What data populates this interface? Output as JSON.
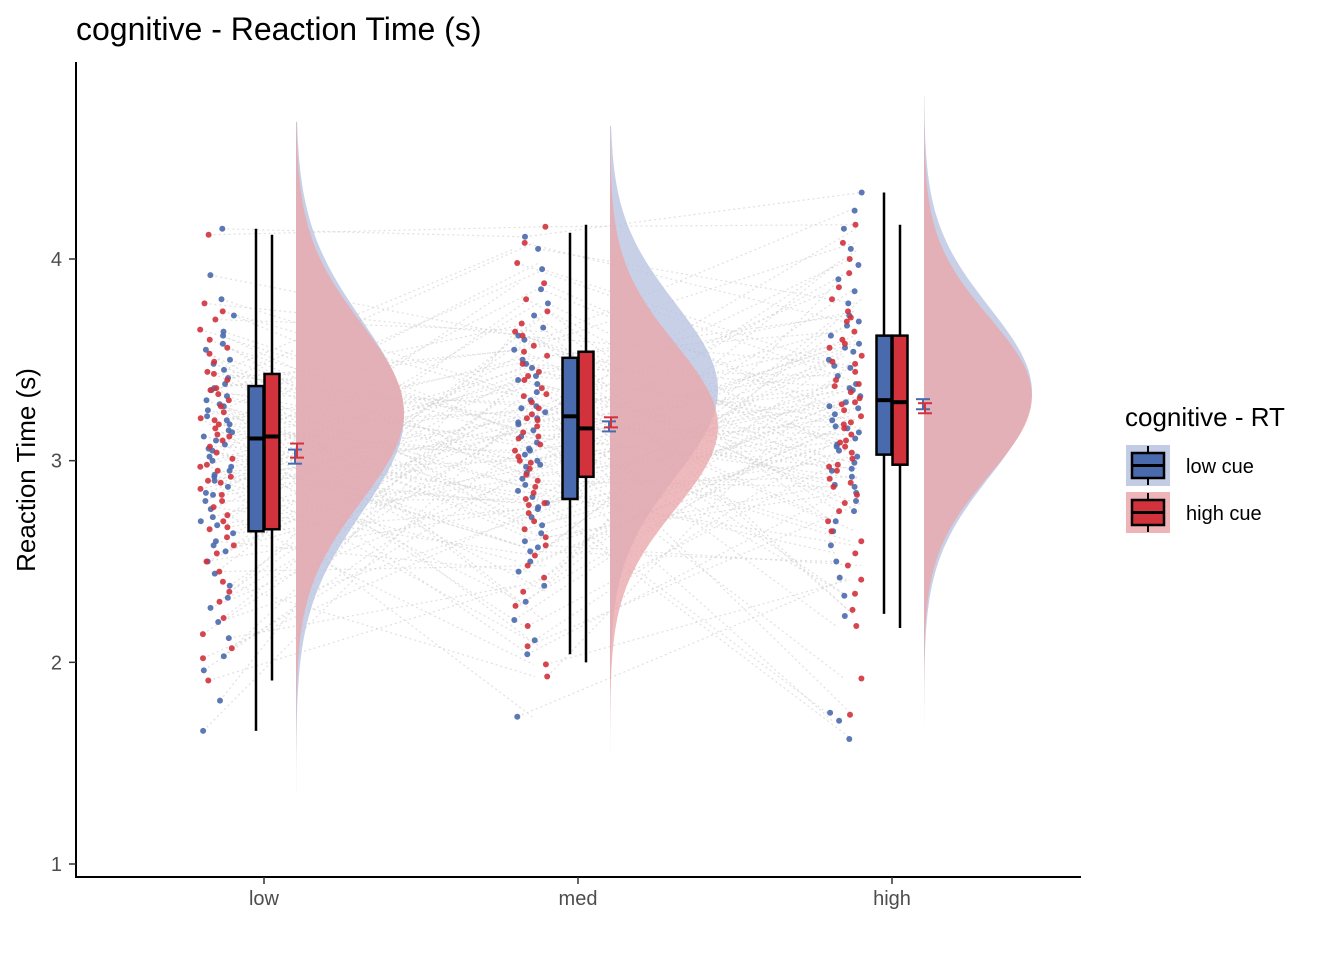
{
  "chart_data": {
    "type": "raincloud",
    "title": "cognitive  - Reaction Time (s)",
    "xlabel": "",
    "ylabel": "Reaction Time (s)",
    "ylim": [
      0.95,
      4.95
    ],
    "yticks": [
      1,
      2,
      3,
      4
    ],
    "categories": [
      "low",
      "med",
      "high"
    ],
    "legend": {
      "title": "cognitive  - RT",
      "position": "right",
      "entries": [
        "low cue",
        "high cue"
      ]
    },
    "colors": {
      "low cue": "#4a6aae",
      "high cue": "#d1323c",
      "low cue_fill": "#b7c3df",
      "high cue_fill": "#eba7ab",
      "overlap": "#c59aaa",
      "connect": "#d3d3d3"
    },
    "series": [
      {
        "name": "low cue",
        "box": [
          {
            "category": "low",
            "whisker_low": 1.66,
            "q1": 2.65,
            "median": 3.11,
            "q3": 3.37,
            "whisker_high": 4.15
          },
          {
            "category": "med",
            "whisker_low": 2.04,
            "q1": 2.81,
            "median": 3.22,
            "q3": 3.51,
            "whisker_high": 4.13
          },
          {
            "category": "high",
            "whisker_low": 2.24,
            "q1": 3.03,
            "median": 3.3,
            "q3": 3.62,
            "whisker_high": 4.33
          }
        ],
        "mean_se": [
          {
            "category": "low",
            "mean": 3.02,
            "se": 0.035
          },
          {
            "category": "med",
            "mean": 3.17,
            "se": 0.025
          },
          {
            "category": "high",
            "mean": 3.28,
            "se": 0.025
          }
        ],
        "density": [
          {
            "category": "low",
            "mean": 3.22,
            "sd": 0.48,
            "range": [
              1.13,
              4.68
            ]
          },
          {
            "category": "med",
            "mean": 3.35,
            "sd": 0.43,
            "range": [
              1.22,
              4.66
            ]
          },
          {
            "category": "high",
            "mean": 3.34,
            "sd": 0.42,
            "range": [
              1.17,
              4.81
            ]
          }
        ]
      },
      {
        "name": "high cue",
        "box": [
          {
            "category": "low",
            "whisker_low": 1.91,
            "q1": 2.66,
            "median": 3.12,
            "q3": 3.43,
            "whisker_high": 4.12
          },
          {
            "category": "med",
            "whisker_low": 2.0,
            "q1": 2.92,
            "median": 3.16,
            "q3": 3.54,
            "whisker_high": 4.17
          },
          {
            "category": "high",
            "whisker_low": 2.17,
            "q1": 2.98,
            "median": 3.29,
            "q3": 3.62,
            "whisker_high": 4.17
          }
        ],
        "mean_se": [
          {
            "category": "low",
            "mean": 3.05,
            "se": 0.035
          },
          {
            "category": "med",
            "mean": 3.19,
            "se": 0.025
          },
          {
            "category": "high",
            "mean": 3.26,
            "se": 0.025
          }
        ],
        "density": [
          {
            "category": "low",
            "mean": 3.24,
            "sd": 0.44,
            "range": [
              1.13,
              4.68
            ]
          },
          {
            "category": "med",
            "mean": 3.17,
            "sd": 0.41,
            "range": [
              1.22,
              4.66
            ]
          },
          {
            "category": "high",
            "mean": 3.32,
            "sd": 0.39,
            "range": [
              1.17,
              4.81
            ]
          }
        ]
      }
    ],
    "points": {
      "low": {
        "low cue": [
          4.15,
          3.92,
          3.8,
          3.72,
          3.62,
          3.58,
          3.55,
          3.5,
          3.45,
          3.41,
          3.38,
          3.35,
          3.32,
          3.3,
          3.28,
          3.25,
          3.22,
          3.2,
          3.18,
          3.15,
          3.12,
          3.1,
          3.08,
          3.05,
          3.02,
          3.0,
          2.97,
          2.95,
          2.92,
          2.9,
          2.87,
          2.84,
          2.8,
          2.76,
          2.72,
          2.68,
          2.64,
          2.6,
          2.55,
          2.5,
          2.44,
          2.38,
          2.32,
          2.27,
          2.2,
          2.12,
          2.03,
          1.96,
          1.81,
          1.66,
          3.64,
          3.48,
          3.27,
          3.06,
          2.83,
          2.58,
          3.36,
          3.14,
          2.93,
          2.7
        ],
        "high cue": [
          4.12,
          3.78,
          3.74,
          3.65,
          3.6,
          3.53,
          3.49,
          3.44,
          3.4,
          3.36,
          3.33,
          3.3,
          3.27,
          3.24,
          3.21,
          3.18,
          3.16,
          3.13,
          3.1,
          3.07,
          3.04,
          3.01,
          2.98,
          2.95,
          2.92,
          2.89,
          2.86,
          2.83,
          2.8,
          2.77,
          2.73,
          2.7,
          2.66,
          2.62,
          2.58,
          2.54,
          2.5,
          2.45,
          2.4,
          2.35,
          2.3,
          2.22,
          2.14,
          2.07,
          2.02,
          1.91,
          3.7,
          3.56,
          3.35,
          3.12,
          2.9,
          2.67,
          3.43,
          3.2,
          2.97
        ]
      },
      "med": {
        "low cue": [
          4.11,
          4.05,
          3.95,
          3.85,
          3.78,
          3.72,
          3.66,
          3.6,
          3.55,
          3.5,
          3.46,
          3.42,
          3.38,
          3.34,
          3.3,
          3.27,
          3.24,
          3.21,
          3.18,
          3.15,
          3.12,
          3.09,
          3.06,
          3.03,
          3.0,
          2.97,
          2.94,
          2.91,
          2.88,
          2.85,
          2.82,
          2.79,
          2.76,
          2.72,
          2.68,
          2.64,
          2.6,
          2.55,
          2.5,
          2.45,
          2.38,
          2.3,
          2.21,
          2.11,
          2.04,
          1.73,
          3.62,
          3.4,
          3.19,
          2.98,
          2.77,
          2.57,
          3.48,
          3.26,
          3.05
        ],
        "high cue": [
          4.16,
          4.08,
          3.98,
          3.88,
          3.8,
          3.74,
          3.68,
          3.62,
          3.57,
          3.52,
          3.48,
          3.44,
          3.4,
          3.36,
          3.32,
          3.29,
          3.26,
          3.23,
          3.2,
          3.17,
          3.14,
          3.11,
          3.08,
          3.05,
          3.02,
          2.99,
          2.96,
          2.93,
          2.9,
          2.87,
          2.84,
          2.81,
          2.78,
          2.74,
          2.7,
          2.66,
          2.62,
          2.58,
          2.53,
          2.48,
          2.42,
          2.35,
          2.28,
          2.18,
          2.08,
          1.99,
          1.93,
          3.64,
          3.42,
          3.21,
          3.0,
          2.79,
          3.54,
          3.33,
          3.12
        ]
      },
      "high": {
        "low cue": [
          4.33,
          4.24,
          4.15,
          4.05,
          3.97,
          3.9,
          3.84,
          3.78,
          3.72,
          3.67,
          3.62,
          3.58,
          3.54,
          3.5,
          3.46,
          3.42,
          3.38,
          3.35,
          3.32,
          3.29,
          3.26,
          3.23,
          3.2,
          3.17,
          3.14,
          3.11,
          3.08,
          3.05,
          3.02,
          2.99,
          2.96,
          2.92,
          2.88,
          2.84,
          2.8,
          2.75,
          2.7,
          2.65,
          2.58,
          2.5,
          2.42,
          2.33,
          2.23,
          1.75,
          1.71,
          1.62,
          3.69,
          3.47,
          3.27,
          3.07,
          2.87,
          3.56,
          3.36,
          3.16,
          2.95
        ],
        "high cue": [
          4.17,
          4.08,
          4.0,
          3.93,
          3.86,
          3.8,
          3.74,
          3.69,
          3.64,
          3.6,
          3.56,
          3.52,
          3.48,
          3.44,
          3.4,
          3.37,
          3.34,
          3.31,
          3.28,
          3.25,
          3.22,
          3.19,
          3.16,
          3.13,
          3.1,
          3.07,
          3.04,
          3.01,
          2.98,
          2.95,
          2.91,
          2.87,
          2.83,
          2.79,
          2.75,
          2.7,
          2.65,
          2.6,
          2.54,
          2.48,
          2.41,
          2.34,
          2.26,
          2.18,
          1.92,
          1.74,
          3.71,
          3.49,
          3.29,
          3.09,
          2.89,
          3.58,
          3.38,
          3.18,
          2.97
        ]
      }
    }
  }
}
